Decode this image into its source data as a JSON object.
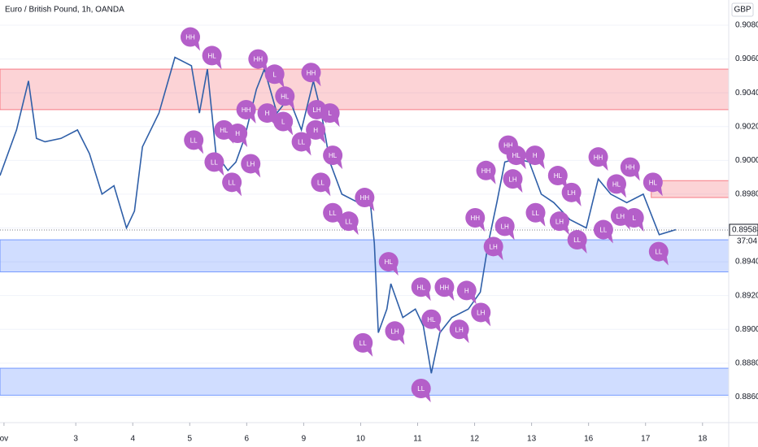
{
  "chart_data": {
    "type": "line",
    "title": "Euro / British Pound, 1h, OANDA",
    "currency": "GBP",
    "color": "#2f5fa8",
    "x": [
      -0.33,
      -0.04,
      0.17,
      0.31,
      0.46,
      0.74,
      1.03,
      1.24,
      1.46,
      1.67,
      1.89,
      2.03,
      2.17,
      2.46,
      2.74,
      3.03,
      3.17,
      3.31,
      3.46,
      3.67,
      3.81,
      3.96,
      4.17,
      4.31,
      4.53,
      4.74,
      4.96,
      5.17,
      5.31,
      5.46,
      5.67,
      5.96,
      6.17,
      6.24,
      6.31,
      6.46,
      6.53,
      6.74,
      6.96,
      7.1,
      7.24,
      7.39,
      7.6,
      7.89,
      8.1,
      8.24,
      8.39,
      8.53,
      8.74,
      8.96,
      9.17,
      9.39,
      9.67,
      9.96,
      10.17,
      10.39,
      10.67,
      10.96,
      11.24,
      11.53
    ],
    "values": [
      0.8991,
      0.9018,
      0.9047,
      0.9013,
      0.9011,
      0.9013,
      0.9018,
      0.9004,
      0.898,
      0.8985,
      0.896,
      0.897,
      0.9008,
      0.9028,
      0.9061,
      0.9056,
      0.9028,
      0.9054,
      0.9004,
      0.8994,
      0.8999,
      0.9013,
      0.9042,
      0.9054,
      0.9028,
      0.9037,
      0.9018,
      0.9047,
      0.9028,
      0.8999,
      0.898,
      0.8975,
      0.8975,
      0.8951,
      0.8898,
      0.8912,
      0.8927,
      0.8907,
      0.8912,
      0.8902,
      0.8874,
      0.8898,
      0.8907,
      0.8912,
      0.8922,
      0.8951,
      0.8975,
      0.8999,
      0.9001,
      0.8999,
      0.898,
      0.8975,
      0.8965,
      0.896,
      0.8989,
      0.898,
      0.8975,
      0.898,
      0.8956,
      0.8959
    ],
    "xlim": [
      -0.33,
      12.46
    ],
    "ylim": [
      0.88448,
      0.90949
    ],
    "xticks": [
      {
        "value": -0.26,
        "label": "ov"
      },
      {
        "value": 1,
        "label": "3"
      },
      {
        "value": 2,
        "label": "4"
      },
      {
        "value": 3,
        "label": "5"
      },
      {
        "value": 4,
        "label": "6"
      },
      {
        "value": 5,
        "label": "9"
      },
      {
        "value": 6,
        "label": "10"
      },
      {
        "value": 7,
        "label": "11"
      },
      {
        "value": 8,
        "label": "12"
      },
      {
        "value": 9,
        "label": "13"
      },
      {
        "value": 10,
        "label": "16"
      },
      {
        "value": 11,
        "label": "17"
      },
      {
        "value": 12,
        "label": "18"
      }
    ],
    "yticks": [
      {
        "value": 0.886,
        "label": "0.88600"
      },
      {
        "value": 0.888,
        "label": "0.88800"
      },
      {
        "value": 0.89,
        "label": "0.89000"
      },
      {
        "value": 0.892,
        "label": "0.89200"
      },
      {
        "value": 0.894,
        "label": "0.89400"
      },
      {
        "value": 0.896,
        "label": "0.89600"
      },
      {
        "value": 0.898,
        "label": "0.89800"
      },
      {
        "value": 0.9,
        "label": "0.90000"
      },
      {
        "value": 0.902,
        "label": "0.90200"
      },
      {
        "value": 0.904,
        "label": "0.90400"
      },
      {
        "value": 0.906,
        "label": "0.90600"
      },
      {
        "value": 0.908,
        "label": "0.90800"
      }
    ],
    "zones": [
      {
        "start": -0.33,
        "low": 0.903,
        "high": 0.9054,
        "color": "#f23645"
      },
      {
        "start": 11.1,
        "low": 0.8978,
        "high": 0.8988,
        "color": "#f23645"
      },
      {
        "start": -0.33,
        "low": 0.8934,
        "high": 0.8953,
        "color": "#2962ff"
      },
      {
        "start": -0.33,
        "low": 0.8861,
        "high": 0.8877,
        "color": "#2962ff"
      }
    ],
    "last_price": {
      "value": 0.89588,
      "label": "0.89588"
    },
    "countdown": "37:04",
    "annotation_color": "#b45fc9",
    "annotations": [
      {
        "text": "HH",
        "x": 3.01,
        "y": 0.9073
      },
      {
        "text": "HL",
        "x": 3.39,
        "y": 0.9062
      },
      {
        "text": "LL",
        "x": 3.07,
        "y": 0.9012
      },
      {
        "text": "LL",
        "x": 3.43,
        "y": 0.8999
      },
      {
        "text": "HL",
        "x": 3.6,
        "y": 0.9018
      },
      {
        "text": "H",
        "x": 3.84,
        "y": 0.9016
      },
      {
        "text": "LL",
        "x": 3.74,
        "y": 0.8987
      },
      {
        "text": "LH",
        "x": 4.07,
        "y": 0.8998
      },
      {
        "text": "HH",
        "x": 3.99,
        "y": 0.903
      },
      {
        "text": "HH",
        "x": 4.2,
        "y": 0.906
      },
      {
        "text": "H",
        "x": 4.36,
        "y": 0.9028
      },
      {
        "text": "L",
        "x": 4.49,
        "y": 0.9051
      },
      {
        "text": "HL",
        "x": 4.67,
        "y": 0.9038
      },
      {
        "text": "L",
        "x": 4.64,
        "y": 0.9023
      },
      {
        "text": "LL",
        "x": 4.96,
        "y": 0.9011
      },
      {
        "text": "H",
        "x": 5.21,
        "y": 0.9018
      },
      {
        "text": "HH",
        "x": 5.13,
        "y": 0.9052
      },
      {
        "text": "LH",
        "x": 5.23,
        "y": 0.903
      },
      {
        "text": "L",
        "x": 5.46,
        "y": 0.9028
      },
      {
        "text": "HL",
        "x": 5.51,
        "y": 0.9003
      },
      {
        "text": "LL",
        "x": 5.3,
        "y": 0.8987
      },
      {
        "text": "LL",
        "x": 5.51,
        "y": 0.8969
      },
      {
        "text": "LL",
        "x": 5.79,
        "y": 0.8964
      },
      {
        "text": "HH",
        "x": 6.07,
        "y": 0.8978
      },
      {
        "text": "HL",
        "x": 6.49,
        "y": 0.894
      },
      {
        "text": "LL",
        "x": 6.04,
        "y": 0.8892
      },
      {
        "text": "LH",
        "x": 6.6,
        "y": 0.8899
      },
      {
        "text": "HL",
        "x": 7.06,
        "y": 0.8925
      },
      {
        "text": "HH",
        "x": 7.47,
        "y": 0.8925
      },
      {
        "text": "H",
        "x": 7.86,
        "y": 0.8923
      },
      {
        "text": "LH",
        "x": 8.11,
        "y": 0.891
      },
      {
        "text": "HL",
        "x": 7.24,
        "y": 0.8906
      },
      {
        "text": "LH",
        "x": 7.73,
        "y": 0.89
      },
      {
        "text": "LL",
        "x": 7.06,
        "y": 0.8865
      },
      {
        "text": "HH",
        "x": 8.01,
        "y": 0.8966
      },
      {
        "text": "HH",
        "x": 8.2,
        "y": 0.8994
      },
      {
        "text": "LH",
        "x": 8.33,
        "y": 0.8949
      },
      {
        "text": "LH",
        "x": 8.53,
        "y": 0.8961
      },
      {
        "text": "HH",
        "x": 8.59,
        "y": 0.9009
      },
      {
        "text": "HL",
        "x": 8.73,
        "y": 0.9003
      },
      {
        "text": "LH",
        "x": 8.67,
        "y": 0.8989
      },
      {
        "text": "H",
        "x": 9.06,
        "y": 0.9003
      },
      {
        "text": "HL",
        "x": 9.46,
        "y": 0.8991
      },
      {
        "text": "LL",
        "x": 9.07,
        "y": 0.8969
      },
      {
        "text": "LH",
        "x": 9.49,
        "y": 0.8964
      },
      {
        "text": "LL",
        "x": 9.8,
        "y": 0.8953
      },
      {
        "text": "LH",
        "x": 9.7,
        "y": 0.8981
      },
      {
        "text": "HH",
        "x": 10.17,
        "y": 0.9002
      },
      {
        "text": "HL",
        "x": 10.49,
        "y": 0.8986
      },
      {
        "text": "LL",
        "x": 10.26,
        "y": 0.8959
      },
      {
        "text": "LH",
        "x": 10.56,
        "y": 0.8967
      },
      {
        "text": "HH",
        "x": 10.73,
        "y": 0.8996
      },
      {
        "text": "L",
        "x": 10.8,
        "y": 0.8966
      },
      {
        "text": "HL",
        "x": 11.13,
        "y": 0.8987
      },
      {
        "text": "LL",
        "x": 11.23,
        "y": 0.8946
      }
    ]
  }
}
